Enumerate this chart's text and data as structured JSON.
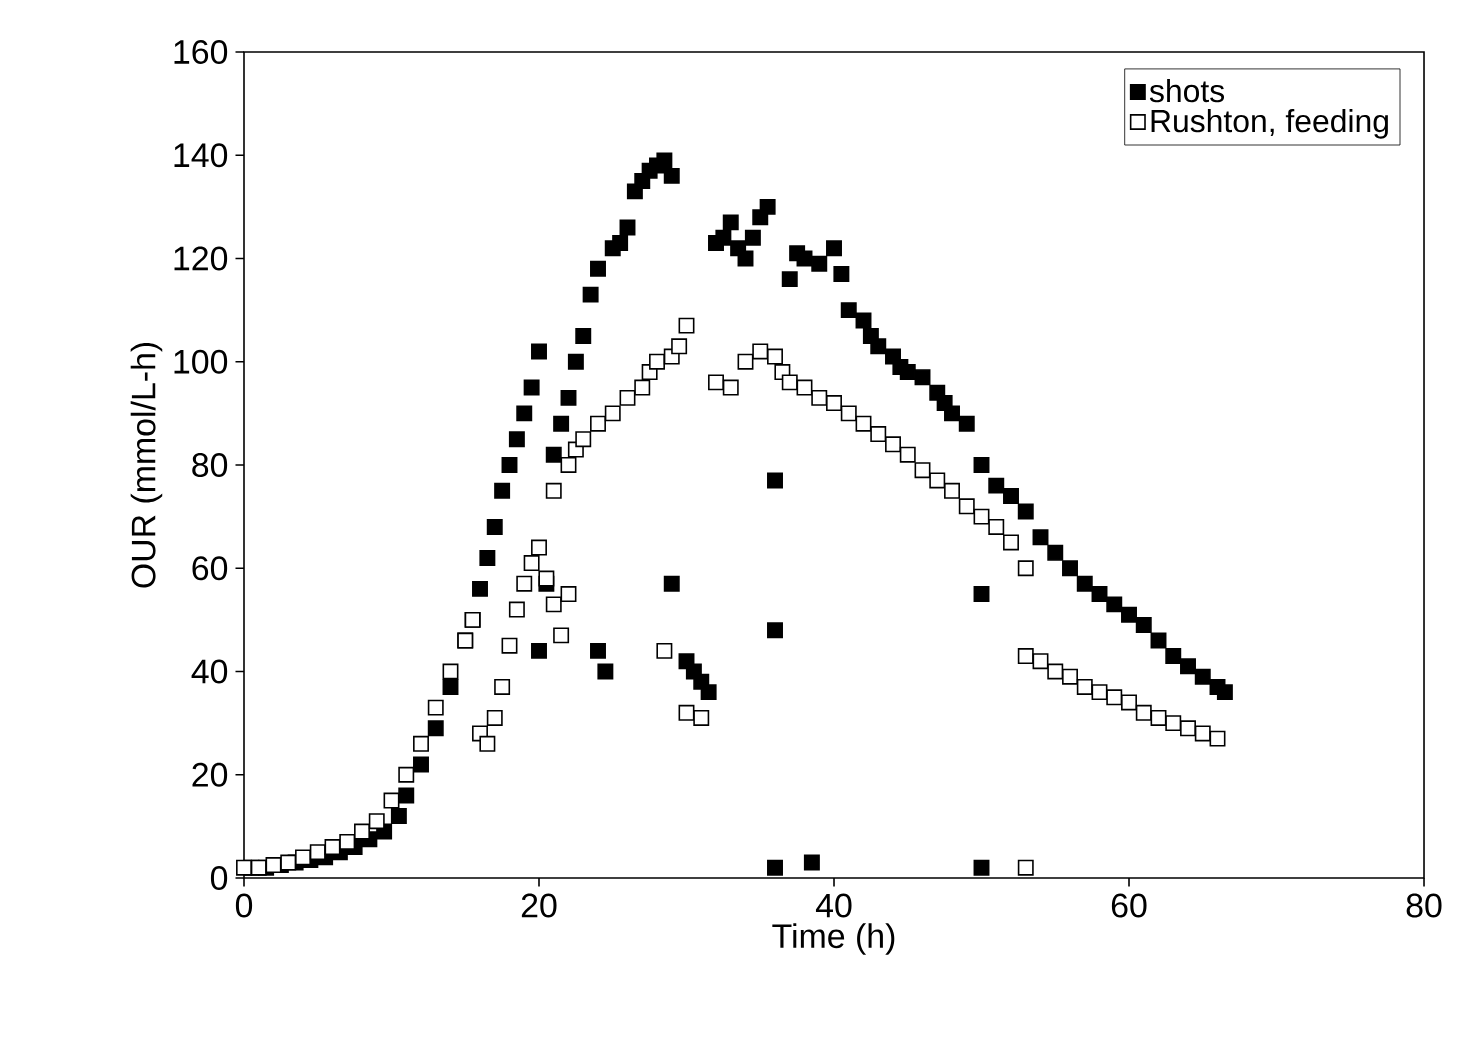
{
  "chart_data": {
    "type": "scatter",
    "xlabel": "Time (h)",
    "ylabel": "OUR (mmol/L-h)",
    "xlim": [
      0,
      80
    ],
    "xticks": [
      0,
      20,
      40,
      60,
      80
    ],
    "ylim": [
      0,
      160
    ],
    "yticks": [
      0,
      20,
      40,
      60,
      80,
      100,
      120,
      140,
      160
    ],
    "legend": "top right",
    "marker": "square",
    "grid": false,
    "series": [
      {
        "name": "shots",
        "color": "#000000",
        "x": [
          0.5,
          1.5,
          2.5,
          3.5,
          4.5,
          5.5,
          6.5,
          7.5,
          8.5,
          9.5,
          10.5,
          11,
          12,
          13,
          14,
          15,
          15.5,
          16,
          16.5,
          17,
          17.5,
          18,
          18.5,
          19,
          19.5,
          20,
          20,
          20.5,
          21,
          21.5,
          22,
          22.5,
          23,
          23.5,
          24,
          24,
          24.5,
          25,
          25.5,
          26,
          26.5,
          27,
          27.5,
          28,
          28.5,
          29,
          29,
          30,
          30.5,
          31,
          31.5,
          32,
          32.5,
          33,
          33.5,
          34,
          34.5,
          35,
          35.5,
          36,
          36,
          36,
          37,
          37.5,
          38,
          38.5,
          39,
          40,
          40.5,
          41,
          42,
          42.5,
          43,
          44,
          44.5,
          45,
          46,
          47,
          47.5,
          48,
          49,
          50,
          50,
          50,
          51,
          52,
          53,
          54,
          55,
          56,
          57,
          58,
          59,
          60,
          61,
          62,
          63,
          64,
          65,
          66,
          66.5
        ],
        "values": [
          2,
          2,
          2.5,
          3,
          3.5,
          4,
          5,
          6,
          7.5,
          9,
          12,
          16,
          22,
          29,
          37,
          46,
          50,
          56,
          62,
          68,
          75,
          80,
          85,
          90,
          95,
          102,
          44,
          57,
          82,
          88,
          93,
          100,
          105,
          113,
          118,
          44,
          40,
          122,
          123,
          126,
          133,
          135,
          137,
          138,
          139,
          136,
          57,
          42,
          40,
          38,
          36,
          123,
          124,
          127,
          122,
          120,
          124,
          128,
          130,
          77,
          48,
          2,
          116,
          121,
          120,
          3,
          119,
          122,
          117,
          110,
          108,
          105,
          103,
          101,
          99,
          98,
          97,
          94,
          92,
          90,
          88,
          55,
          2,
          80,
          76,
          74,
          71,
          66,
          63,
          60,
          57,
          55,
          53,
          51,
          49,
          46,
          43,
          41,
          39,
          37,
          36
        ]
      },
      {
        "name": "Rushton, feeding",
        "color": "#ffffff",
        "x": [
          0,
          1,
          2,
          3,
          4,
          5,
          6,
          7,
          8,
          9,
          10,
          11,
          12,
          13,
          14,
          15,
          15.5,
          16,
          16.5,
          17,
          17.5,
          18,
          18.5,
          19,
          19.5,
          20,
          20.5,
          21,
          21.5,
          22,
          21,
          22,
          22.5,
          23,
          24,
          25,
          26,
          27,
          27.5,
          28,
          29,
          29.5,
          30,
          28.5,
          30,
          31,
          32,
          33,
          34,
          35,
          36,
          36.5,
          37,
          38,
          39,
          40,
          41,
          42,
          43,
          44,
          45,
          46,
          47,
          48,
          49,
          50,
          51,
          52,
          53,
          53,
          53,
          54,
          55,
          56,
          57,
          58,
          59,
          60,
          61,
          62,
          63,
          64,
          65,
          66
        ],
        "values": [
          2,
          2,
          2.5,
          3,
          4,
          5,
          6,
          7,
          9,
          11,
          15,
          20,
          26,
          33,
          40,
          46,
          50,
          28,
          26,
          31,
          37,
          45,
          52,
          57,
          61,
          64,
          58,
          53,
          47,
          55,
          75,
          80,
          83,
          85,
          88,
          90,
          93,
          95,
          98,
          100,
          101,
          103,
          107,
          44,
          32,
          31,
          96,
          95,
          100,
          102,
          101,
          98,
          96,
          95,
          93,
          92,
          90,
          88,
          86,
          84,
          82,
          79,
          77,
          75,
          72,
          70,
          68,
          65,
          60,
          2,
          43,
          42,
          40,
          39,
          37,
          36,
          35,
          34,
          32,
          31,
          30,
          29,
          28,
          27
        ]
      }
    ]
  }
}
